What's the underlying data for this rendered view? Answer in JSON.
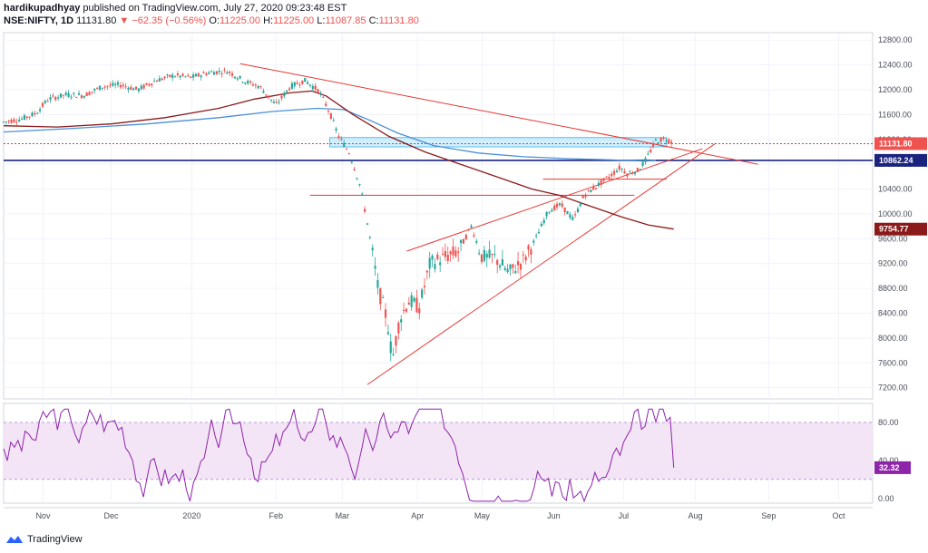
{
  "header": {
    "author": "hardikupadhyay",
    "published_text": "published on TradingView.com, July 27, 2020 09:23:48 EST",
    "symbol": "NSE:NIFTY, 1D",
    "last": "11131.80",
    "change": "▼ −62.35 (−0.56%)",
    "o_label": "O:",
    "o": "11225.00",
    "h_label": "H:",
    "h": "11225.00",
    "l_label": "L:",
    "l": "11087.85",
    "c_label": "C:",
    "c": "11131.80"
  },
  "footer": {
    "brand": "TradingView"
  },
  "colors": {
    "up": "#26a69a",
    "down": "#ef5350",
    "ma_fast": "#8b1a1a",
    "ma_slow": "#4a90d9",
    "trend": "#e53935",
    "hline": "#1a237e",
    "rsi": "#8e24aa",
    "rsi_band": "#f3e5f5",
    "zone_fill": "#b3e5fc",
    "zone_stroke": "#4fc3f7"
  },
  "chart_data": {
    "type": "candlestick",
    "price_axis": {
      "ticks": [
        7200,
        7600,
        8000,
        8400,
        8800,
        9200,
        9600,
        10000,
        10400,
        10800,
        11200,
        11600,
        12000,
        12400,
        12800
      ],
      "tick_labels": [
        "7200.00",
        "7600.00",
        "8000.00",
        "8400.00",
        "8800.00",
        "9200.00",
        "9600.00",
        "10000.00",
        "10400.00",
        "10800.00",
        "11200.00",
        "11600.00",
        "12000.00",
        "12400.00",
        "12800.00"
      ],
      "range": [
        7020,
        12920
      ]
    },
    "time_axis": {
      "labels": [
        "Nov",
        "Dec",
        "2020",
        "Feb",
        "Mar",
        "Apr",
        "May",
        "Jun",
        "Jul",
        "Aug",
        "Sep",
        "Oct"
      ],
      "label_days": [
        22,
        60,
        105,
        152,
        189,
        231,
        267,
        307,
        346,
        386,
        427,
        466
      ],
      "range": [
        0,
        485
      ]
    },
    "price_keypoints": [
      [
        0,
        11480
      ],
      [
        10,
        11530
      ],
      [
        18,
        11620
      ],
      [
        25,
        11850
      ],
      [
        35,
        11920
      ],
      [
        45,
        11910
      ],
      [
        55,
        12050
      ],
      [
        65,
        12080
      ],
      [
        75,
        12000
      ],
      [
        85,
        12150
      ],
      [
        95,
        12230
      ],
      [
        105,
        12200
      ],
      [
        115,
        12280
      ],
      [
        125,
        12300
      ],
      [
        135,
        12130
      ],
      [
        143,
        12050
      ],
      [
        152,
        11750
      ],
      [
        160,
        12050
      ],
      [
        168,
        12150
      ],
      [
        176,
        11980
      ],
      [
        182,
        11630
      ],
      [
        187,
        11250
      ],
      [
        193,
        10980
      ],
      [
        199,
        10450
      ],
      [
        204,
        9700
      ],
      [
        209,
        8800
      ],
      [
        214,
        8300
      ],
      [
        217,
        7650
      ],
      [
        221,
        8300
      ],
      [
        226,
        8600
      ],
      [
        232,
        8500
      ],
      [
        238,
        9200
      ],
      [
        246,
        9300
      ],
      [
        254,
        9400
      ],
      [
        261,
        9800
      ],
      [
        267,
        9300
      ],
      [
        274,
        9300
      ],
      [
        282,
        9050
      ],
      [
        290,
        9250
      ],
      [
        297,
        9600
      ],
      [
        304,
        10050
      ],
      [
        311,
        10150
      ],
      [
        318,
        9900
      ],
      [
        324,
        10300
      ],
      [
        331,
        10450
      ],
      [
        338,
        10600
      ],
      [
        344,
        10750
      ],
      [
        348,
        10650
      ],
      [
        354,
        10700
      ],
      [
        358,
        10850
      ],
      [
        364,
        11180
      ],
      [
        370,
        11210
      ],
      [
        374,
        11131.8
      ]
    ],
    "ma_fast": [
      [
        0,
        11420
      ],
      [
        30,
        11400
      ],
      [
        60,
        11450
      ],
      [
        90,
        11550
      ],
      [
        120,
        11700
      ],
      [
        140,
        11850
      ],
      [
        160,
        11950
      ],
      [
        172,
        11980
      ],
      [
        180,
        11900
      ],
      [
        195,
        11600
      ],
      [
        215,
        11250
      ],
      [
        235,
        11000
      ],
      [
        255,
        10800
      ],
      [
        275,
        10600
      ],
      [
        295,
        10400
      ],
      [
        310,
        10300
      ],
      [
        330,
        10100
      ],
      [
        345,
        9950
      ],
      [
        360,
        9820
      ],
      [
        374,
        9754.77
      ]
    ],
    "ma_slow": [
      [
        0,
        11320
      ],
      [
        40,
        11380
      ],
      [
        80,
        11450
      ],
      [
        120,
        11550
      ],
      [
        150,
        11650
      ],
      [
        175,
        11700
      ],
      [
        190,
        11680
      ],
      [
        205,
        11500
      ],
      [
        220,
        11300
      ],
      [
        240,
        11100
      ],
      [
        265,
        10980
      ],
      [
        290,
        10920
      ],
      [
        315,
        10890
      ],
      [
        340,
        10870
      ],
      [
        358,
        10850
      ],
      [
        364,
        10862.24
      ]
    ],
    "levels": {
      "zone": [
        11080,
        11130,
        11150,
        11230
      ],
      "resistance_line": 10862.24,
      "last_price": 11131.8,
      "support_hline": 10300,
      "right_hline": 10560
    },
    "trendlines": [
      {
        "from": [
          132,
          12420
        ],
        "to": [
          421,
          10800
        ]
      },
      {
        "from": [
          203,
          7250
        ],
        "to": [
          397,
          11130
        ]
      },
      {
        "from": [
          225,
          9400
        ],
        "to": [
          390,
          11050
        ]
      }
    ],
    "right_labels": [
      "11131.80",
      "10862.24",
      "9754.77"
    ],
    "rsi": {
      "ticks": [
        0,
        40,
        80
      ],
      "tick_labels": [
        "0.00",
        "40.00",
        "80.00"
      ],
      "band": [
        20,
        80
      ],
      "last": 32.32,
      "last_label": "32.32",
      "range": [
        -5,
        100
      ]
    }
  }
}
